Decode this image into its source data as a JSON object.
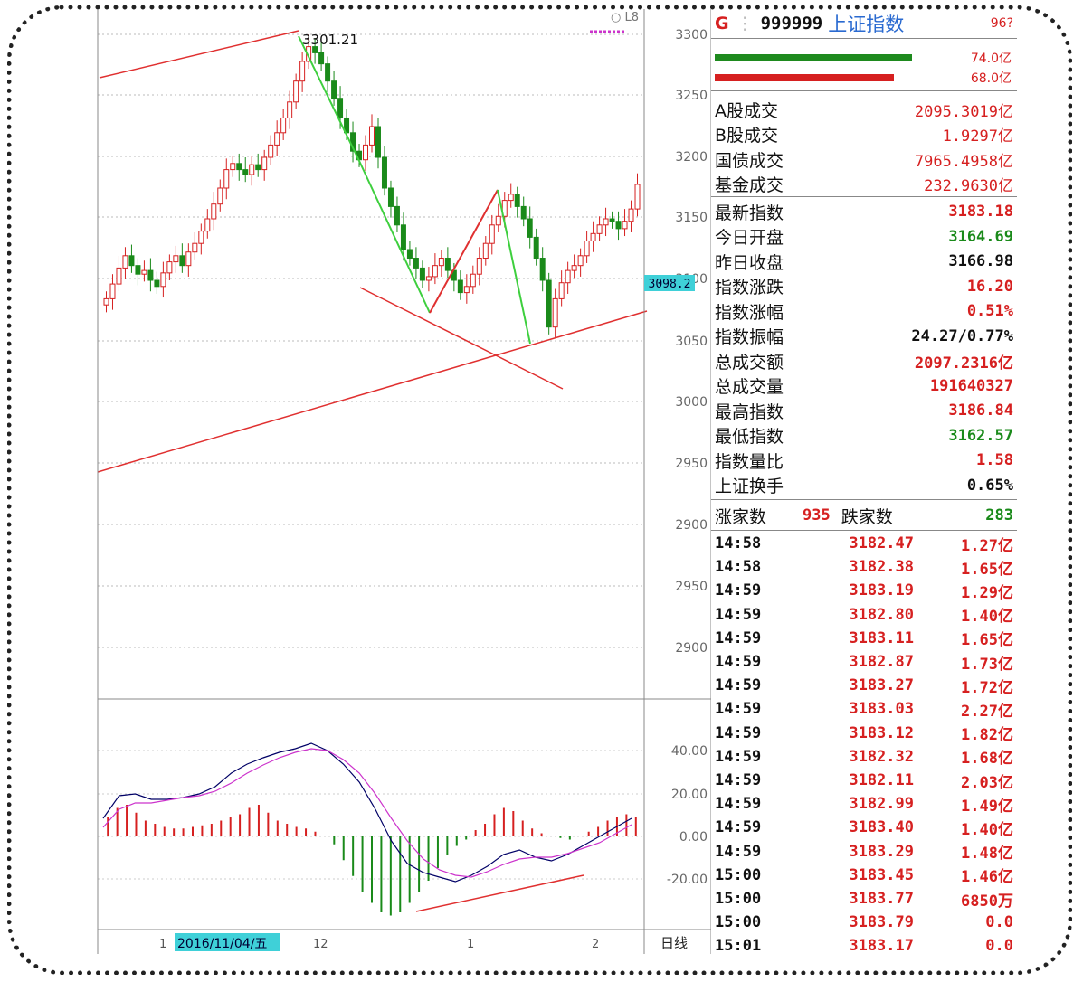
{
  "header": {
    "market_code": "G",
    "index_code": "999999",
    "index_name": "上证指数",
    "top_right": "96?",
    "bar1_label": "74.0亿",
    "bar2_label": "68.0亿"
  },
  "turnover": [
    {
      "label": "A股成交",
      "value": "2095.3019亿"
    },
    {
      "label": "B股成交",
      "value": "1.9297亿"
    },
    {
      "label": "国债成交",
      "value": "7965.4958亿"
    },
    {
      "label": "基金成交",
      "value": "232.9630亿"
    }
  ],
  "stats": [
    {
      "label": "最新指数",
      "value": "3183.18",
      "color": "#d62020"
    },
    {
      "label": "今日开盘",
      "value": "3164.69",
      "color": "#1a8a1a"
    },
    {
      "label": "昨日收盘",
      "value": "3166.98",
      "color": "#111111"
    },
    {
      "label": "指数涨跌",
      "value": "16.20",
      "color": "#d62020"
    },
    {
      "label": "指数涨幅",
      "value": "0.51%",
      "color": "#d62020"
    },
    {
      "label": "指数振幅",
      "value": "24.27/0.77%",
      "color": "#111111"
    },
    {
      "label": "总成交额",
      "value": "2097.2316亿",
      "color": "#d62020"
    },
    {
      "label": "总成交量",
      "value": "191640327",
      "color": "#d62020"
    },
    {
      "label": "最高指数",
      "value": "3186.84",
      "color": "#d62020"
    },
    {
      "label": "最低指数",
      "value": "3162.57",
      "color": "#1a8a1a"
    },
    {
      "label": "指数量比",
      "value": "1.58",
      "color": "#d62020"
    },
    {
      "label": "上证换手",
      "value": "0.65%",
      "color": "#111111"
    }
  ],
  "breadth": {
    "up_label": "涨家数",
    "up_value": "935",
    "down_label": "跌家数",
    "down_value": "283"
  },
  "ticks": [
    {
      "time": "14:58",
      "price": "3182.47",
      "vol": "1.27亿"
    },
    {
      "time": "14:58",
      "price": "3182.38",
      "vol": "1.65亿"
    },
    {
      "time": "14:59",
      "price": "3183.19",
      "vol": "1.29亿"
    },
    {
      "time": "14:59",
      "price": "3182.80",
      "vol": "1.40亿"
    },
    {
      "time": "14:59",
      "price": "3183.11",
      "vol": "1.65亿"
    },
    {
      "time": "14:59",
      "price": "3182.87",
      "vol": "1.73亿"
    },
    {
      "time": "14:59",
      "price": "3183.27",
      "vol": "1.72亿"
    },
    {
      "time": "14:59",
      "price": "3183.03",
      "vol": "2.27亿"
    },
    {
      "time": "14:59",
      "price": "3183.12",
      "vol": "1.82亿"
    },
    {
      "time": "14:59",
      "price": "3182.32",
      "vol": "1.68亿"
    },
    {
      "time": "14:59",
      "price": "3182.11",
      "vol": "2.03亿"
    },
    {
      "time": "14:59",
      "price": "3182.99",
      "vol": "1.49亿"
    },
    {
      "time": "14:59",
      "price": "3183.40",
      "vol": "1.40亿"
    },
    {
      "time": "14:59",
      "price": "3183.29",
      "vol": "1.48亿"
    },
    {
      "time": "15:00",
      "price": "3183.45",
      "vol": "1.46亿"
    },
    {
      "time": "15:00",
      "price": "3183.77",
      "vol": "6850万"
    },
    {
      "time": "15:00",
      "price": "3183.79",
      "vol": "0.0"
    },
    {
      "time": "15:01",
      "price": "3183.17",
      "vol": "0.0"
    }
  ],
  "chart_data": {
    "type": "candlestick",
    "price_axis_ticks": [
      "3300",
      "3250",
      "3200",
      "3150",
      "3100",
      "3050",
      "3000",
      "2950",
      "2900",
      "2950",
      "2900"
    ],
    "current_price_marker": "3098.2",
    "peak_annotation": "3301.21",
    "top_right_label": "○ L8",
    "macd_axis_ticks": [
      "40.00",
      "20.00",
      "0.00",
      "-20.00"
    ],
    "date_axis": {
      "left_mark": "1",
      "selected_date": "2016/11/04/五",
      "mark2": "12",
      "mark3": "1",
      "mark4": "2"
    },
    "period_label": "日线",
    "colors": {
      "up": "#d62020",
      "down": "#1a8a1a",
      "trend_green": "#3ecf3e",
      "trend_red": "#e03030",
      "dif": "#000066",
      "dea": "#cc33cc"
    }
  }
}
